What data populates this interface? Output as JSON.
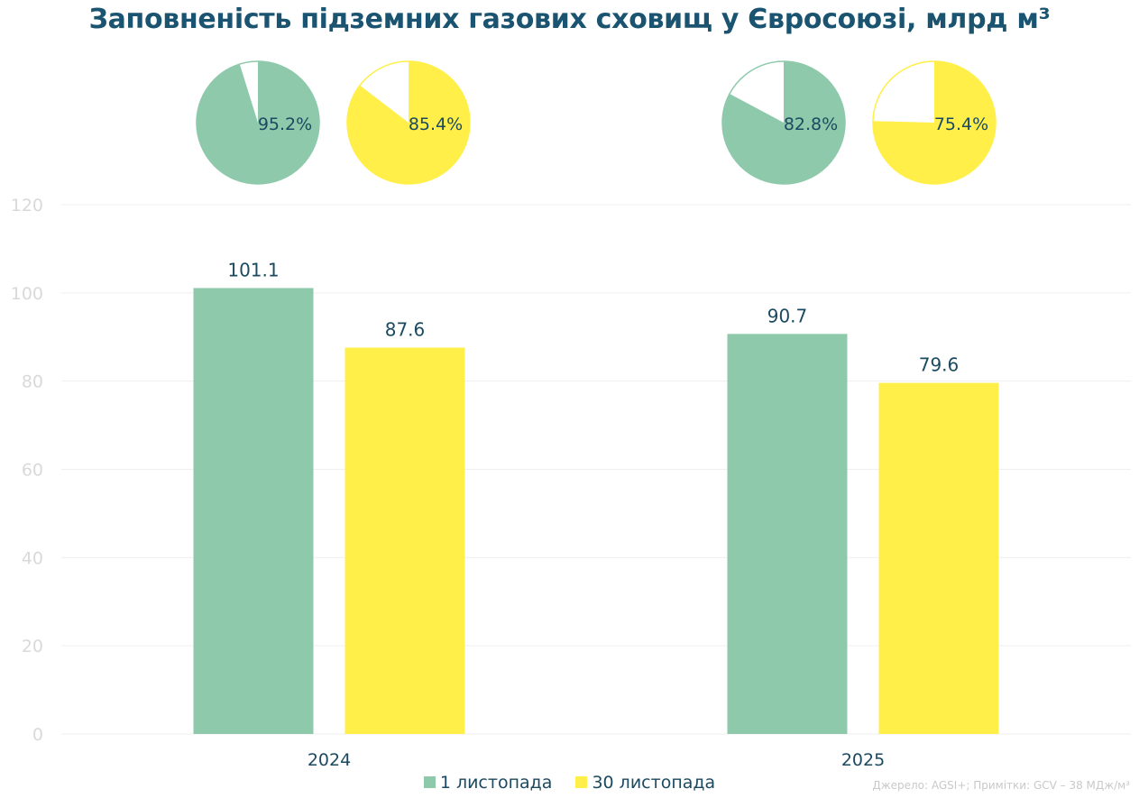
{
  "title": "Заповненість підземних газових сховищ у Євросоюзі, млрд м³",
  "source_note": "Джерело: AGSI+; Примітки: GCV – 38 МДж/м³",
  "colors": {
    "series_1": "#8ec9ab",
    "series_2": "#ffef48",
    "gridline": "#efefef",
    "pie_remainder": "#ffffff"
  },
  "chart_data": [
    {
      "type": "bar",
      "title": "Заповненість підземних газових сховищ у Євросоюзі, млрд м³",
      "xlabel": "",
      "ylabel": "",
      "categories": [
        "2024",
        "2025"
      ],
      "series": [
        {
          "name": "1 листопада",
          "values": [
            101.1,
            90.7
          ],
          "labels": [
            "101.1",
            "90.7"
          ]
        },
        {
          "name": "30 листопада",
          "values": [
            87.6,
            79.6
          ],
          "labels": [
            "87.6",
            "79.6"
          ]
        }
      ],
      "ylim": [
        0,
        120
      ],
      "yticks": [
        0,
        20,
        40,
        60,
        80,
        100,
        120
      ],
      "grid": true,
      "legend": "bottom"
    },
    {
      "type": "pie",
      "category": "2024",
      "series": "1 листопада",
      "value": 95.2,
      "label": "95.2%"
    },
    {
      "type": "pie",
      "category": "2024",
      "series": "30 листопада",
      "value": 85.4,
      "label": "85.4%"
    },
    {
      "type": "pie",
      "category": "2025",
      "series": "1 листопада",
      "value": 82.8,
      "label": "82.8%"
    },
    {
      "type": "pie",
      "category": "2025",
      "series": "30 листопада",
      "value": 75.4,
      "label": "75.4%"
    }
  ]
}
